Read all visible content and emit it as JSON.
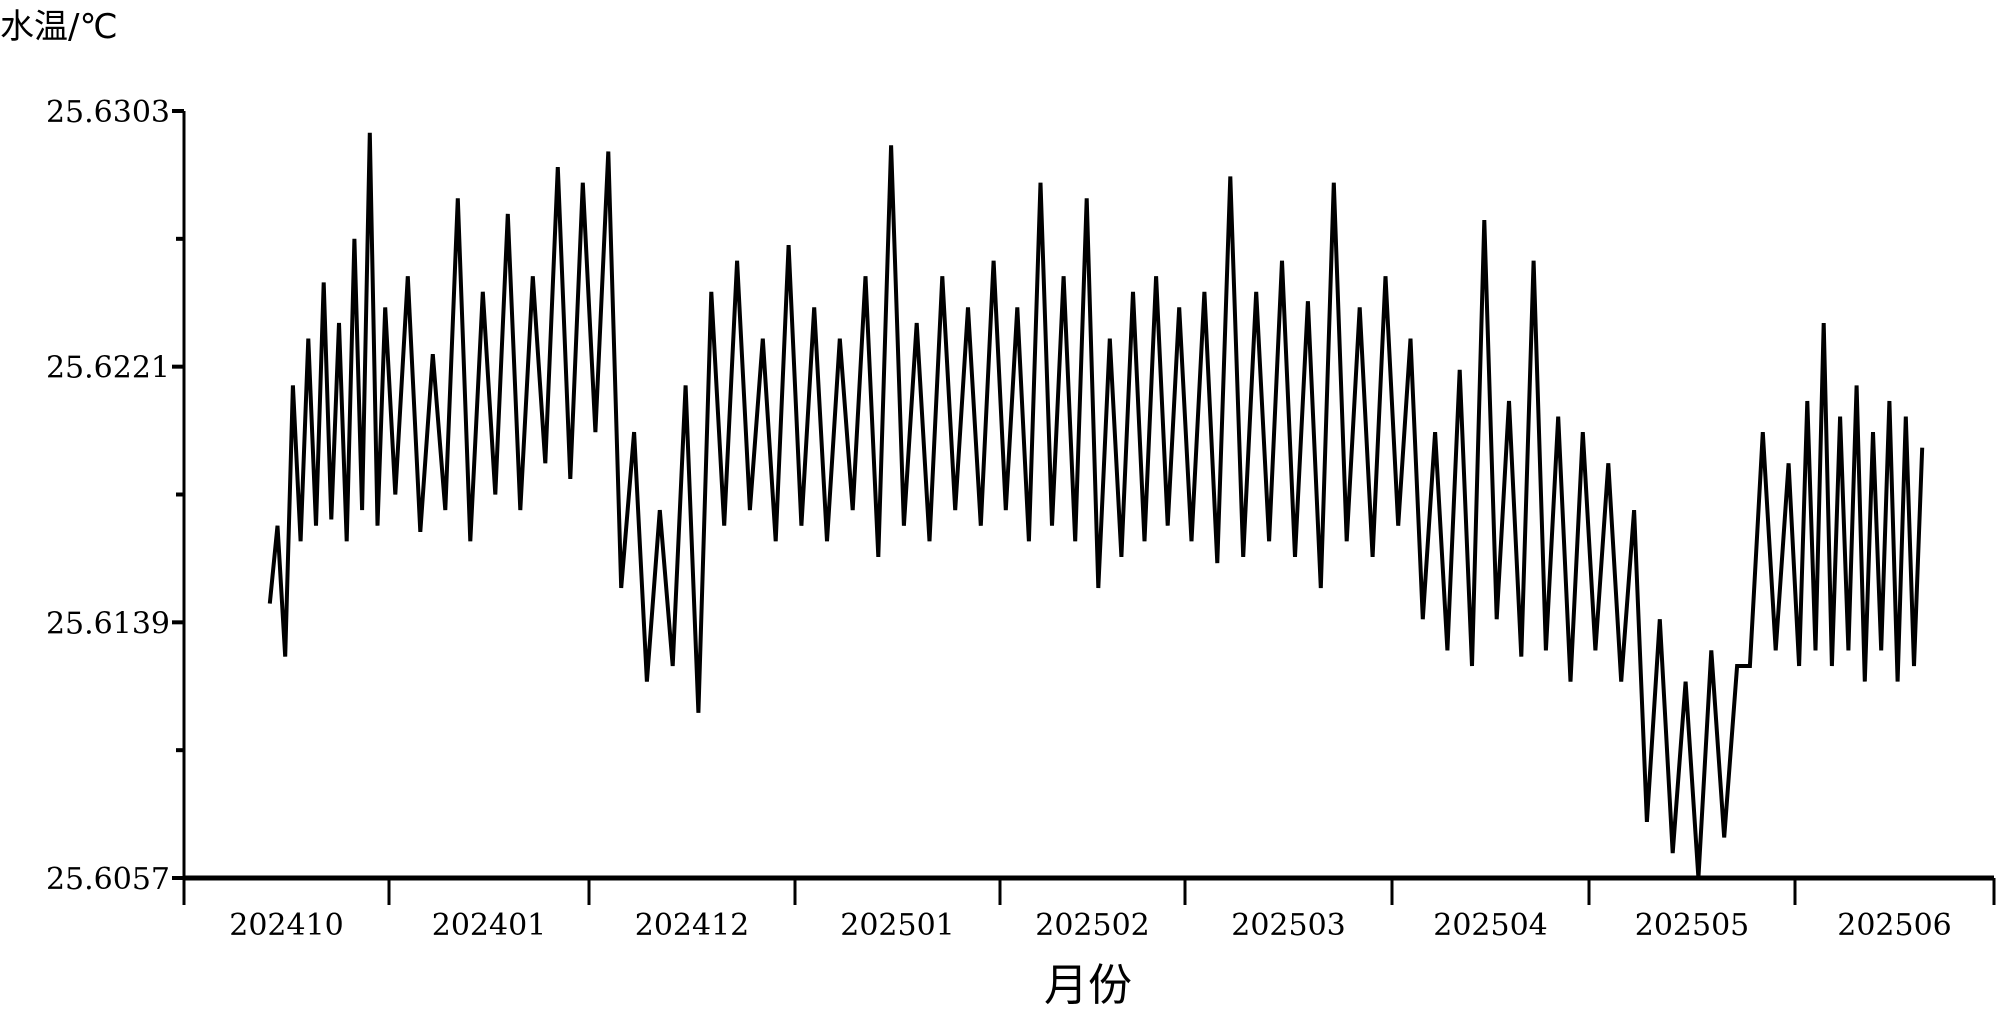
{
  "chart_data": {
    "type": "line",
    "title": "",
    "xlabel": "月份",
    "ylabel": "水温/℃",
    "ylim": [
      25.6057,
      25.6303
    ],
    "yticks": [
      "25.6303",
      "25.6221",
      "25.6139",
      "25.6057"
    ],
    "yticks_minor": [
      25.6262,
      25.618,
      25.6098
    ],
    "categories": [
      "202410",
      "202401",
      "202412",
      "202501",
      "202502",
      "202503",
      "202504",
      "202505",
      "202506"
    ],
    "grid": false,
    "legend": "none",
    "line_color": "#000000",
    "series": [
      {
        "values_by_month": [
          [
            25.6145,
            25.617,
            25.6128,
            25.6215,
            25.6165,
            25.623,
            25.617,
            25.6248,
            25.6172,
            25.6235,
            25.6165,
            25.6262,
            25.6175,
            25.6296,
            25.617,
            25.624
          ],
          [
            25.618,
            25.625,
            25.6168,
            25.6225,
            25.6175,
            25.6275,
            25.6165,
            25.6245,
            25.618,
            25.627,
            25.6175,
            25.625,
            25.619,
            25.6285,
            25.6185,
            25.628
          ],
          [
            25.62,
            25.629,
            25.615,
            25.62,
            25.612,
            25.6175,
            25.6125,
            25.6215,
            25.611,
            25.6245,
            25.617,
            25.6255,
            25.6175,
            25.623,
            25.6165,
            25.626
          ],
          [
            25.617,
            25.624,
            25.6165,
            25.623,
            25.6175,
            25.625,
            25.616,
            25.6292,
            25.617,
            25.6235,
            25.6165,
            25.625,
            25.6175,
            25.624,
            25.617,
            25.6255
          ],
          [
            25.6175,
            25.624,
            25.6165,
            25.628,
            25.617,
            25.625,
            25.6165,
            25.6275,
            25.615,
            25.623,
            25.616,
            25.6245,
            25.6165,
            25.625,
            25.617,
            25.624
          ],
          [
            25.6165,
            25.6245,
            25.6158,
            25.6282,
            25.616,
            25.6245,
            25.6165,
            25.6255,
            25.616,
            25.6242,
            25.615,
            25.628,
            25.6165,
            25.624,
            25.616,
            25.625
          ],
          [
            25.617,
            25.623,
            25.614,
            25.62,
            25.613,
            25.622,
            25.6125,
            25.6268,
            25.614,
            25.621,
            25.6128,
            25.6255,
            25.613,
            25.6205,
            25.612,
            25.62
          ],
          [
            25.613,
            25.619,
            25.612,
            25.6175,
            25.6075,
            25.614,
            25.6065,
            25.612,
            25.6057,
            25.613,
            25.607,
            25.6125,
            25.6125,
            25.62,
            25.613,
            25.619
          ],
          [
            25.6125,
            25.621,
            25.613,
            25.6235,
            25.6125,
            25.6205,
            25.613,
            25.6215,
            25.612,
            25.62,
            25.613,
            25.621,
            25.612,
            25.6205,
            25.6125,
            25.6195
          ]
        ]
      }
    ]
  }
}
